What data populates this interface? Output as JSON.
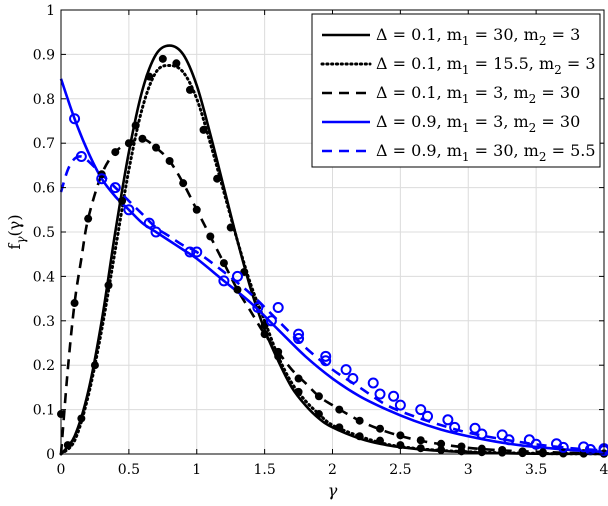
{
  "chart_data": {
    "type": "line",
    "title": "",
    "xlabel": "γ",
    "ylabel": "f_γ(γ)",
    "ylabel_main": "f",
    "ylabel_sub": "γ",
    "ylabel_arg": "(γ)",
    "xlim": [
      0,
      4
    ],
    "ylim": [
      0,
      1
    ],
    "xticks": [
      0,
      0.5,
      1,
      1.5,
      2,
      2.5,
      3,
      3.5,
      4
    ],
    "xtick_labels": [
      "0",
      "0.5",
      "1",
      "1.5",
      "2",
      "2.5",
      "3",
      "3.5",
      "4"
    ],
    "yticks": [
      0,
      0.1,
      0.2,
      0.3,
      0.4,
      0.5,
      0.6,
      0.7,
      0.8,
      0.9,
      1
    ],
    "ytick_labels": [
      "0",
      "0.1",
      "0.2",
      "0.3",
      "0.4",
      "0.5",
      "0.6",
      "0.7",
      "0.8",
      "0.9",
      "1"
    ],
    "grid": true,
    "legend_position": "top-right",
    "series": [
      {
        "name": "Δ = 0.1, m₁ = 30, m₂ = 3",
        "legend_parts": [
          "Δ = 0.1, m",
          "1",
          " = 30, m",
          "2",
          " = 3"
        ],
        "color": "#000000",
        "line_style": "solid",
        "x": [
          0,
          0.1,
          0.2,
          0.3,
          0.4,
          0.5,
          0.6,
          0.7,
          0.8,
          0.9,
          1.0,
          1.1,
          1.2,
          1.3,
          1.4,
          1.5,
          1.6,
          1.7,
          1.8,
          1.9,
          2.0,
          2.2,
          2.4,
          2.6,
          2.8,
          3.0,
          3.2,
          3.4,
          3.6,
          3.8,
          4.0
        ],
        "y": [
          0,
          0.04,
          0.14,
          0.3,
          0.5,
          0.68,
          0.82,
          0.9,
          0.92,
          0.9,
          0.83,
          0.72,
          0.6,
          0.48,
          0.37,
          0.28,
          0.21,
          0.15,
          0.11,
          0.08,
          0.06,
          0.035,
          0.02,
          0.012,
          0.007,
          0.004,
          0.002,
          0.001,
          0.0005,
          0.0003,
          0.0002
        ]
      },
      {
        "name": "Δ = 0.1, m₁ = 15.5, m₂ = 3",
        "legend_parts": [
          "Δ = 0.1, m",
          "1",
          " = 15.5, m",
          "2",
          " = 3"
        ],
        "color": "#000000",
        "line_style": "dotted",
        "x": [
          0,
          0.1,
          0.2,
          0.3,
          0.4,
          0.5,
          0.6,
          0.7,
          0.8,
          0.9,
          1.0,
          1.1,
          1.2,
          1.3,
          1.4,
          1.5,
          1.6,
          1.7,
          1.8,
          1.9,
          2.0,
          2.2,
          2.4,
          2.6,
          2.8,
          3.0,
          3.2,
          3.4,
          3.6,
          3.8,
          4.0
        ],
        "y": [
          0,
          0.03,
          0.13,
          0.28,
          0.46,
          0.64,
          0.78,
          0.86,
          0.875,
          0.86,
          0.8,
          0.7,
          0.59,
          0.48,
          0.38,
          0.3,
          0.22,
          0.16,
          0.12,
          0.09,
          0.065,
          0.04,
          0.022,
          0.013,
          0.008,
          0.005,
          0.003,
          0.002,
          0.001,
          0.0006,
          0.0004
        ]
      },
      {
        "name": "Δ = 0.1, m₁ = 3, m₂ = 30",
        "legend_parts": [
          "Δ = 0.1, m",
          "1",
          " = 3, m",
          "2",
          " = 30"
        ],
        "color": "#000000",
        "line_style": "dashed",
        "x": [
          0,
          0.05,
          0.1,
          0.15,
          0.2,
          0.3,
          0.4,
          0.5,
          0.6,
          0.7,
          0.8,
          0.9,
          1.0,
          1.1,
          1.2,
          1.3,
          1.4,
          1.5,
          1.6,
          1.7,
          1.8,
          1.9,
          2.0,
          2.2,
          2.4,
          2.6,
          2.8,
          3.0,
          3.2,
          3.4,
          3.6,
          3.8,
          4.0
        ],
        "y": [
          0,
          0.19,
          0.34,
          0.44,
          0.53,
          0.63,
          0.68,
          0.7,
          0.71,
          0.69,
          0.66,
          0.61,
          0.55,
          0.49,
          0.43,
          0.37,
          0.32,
          0.27,
          0.23,
          0.19,
          0.16,
          0.13,
          0.11,
          0.075,
          0.05,
          0.033,
          0.022,
          0.014,
          0.009,
          0.006,
          0.004,
          0.002,
          0.0015
        ]
      },
      {
        "name": "Δ = 0.9, m₁ = 3, m₂ = 30",
        "legend_parts": [
          "Δ = 0.9, m",
          "1",
          " = 3, m",
          "2",
          " = 30"
        ],
        "color": "#0000FF",
        "line_style": "solid",
        "x": [
          0,
          0.1,
          0.2,
          0.3,
          0.4,
          0.5,
          0.6,
          0.7,
          0.8,
          0.9,
          1.0,
          1.2,
          1.4,
          1.6,
          1.8,
          2.0,
          2.2,
          2.4,
          2.6,
          2.8,
          3.0,
          3.2,
          3.4,
          3.6,
          3.8,
          4.0
        ],
        "y": [
          0.845,
          0.755,
          0.68,
          0.62,
          0.58,
          0.55,
          0.52,
          0.5,
          0.48,
          0.46,
          0.44,
          0.39,
          0.34,
          0.28,
          0.22,
          0.17,
          0.13,
          0.1,
          0.075,
          0.055,
          0.04,
          0.028,
          0.019,
          0.013,
          0.008,
          0.005
        ]
      },
      {
        "name": "Δ = 0.9, m₁ = 30, m₂ = 5.5",
        "legend_parts": [
          "Δ = 0.9, m",
          "1",
          " = 30, m",
          "2",
          " = 5.5"
        ],
        "color": "#0000FF",
        "line_style": "dashed",
        "x": [
          0,
          0.05,
          0.1,
          0.15,
          0.2,
          0.3,
          0.4,
          0.5,
          0.6,
          0.7,
          0.8,
          0.9,
          1.0,
          1.2,
          1.4,
          1.6,
          1.8,
          2.0,
          2.2,
          2.4,
          2.6,
          2.8,
          3.0,
          3.2,
          3.4,
          3.6,
          3.8,
          4.0
        ],
        "y": [
          0.59,
          0.64,
          0.665,
          0.67,
          0.66,
          0.63,
          0.6,
          0.57,
          0.54,
          0.51,
          0.49,
          0.47,
          0.455,
          0.41,
          0.36,
          0.3,
          0.24,
          0.19,
          0.15,
          0.11,
          0.085,
          0.065,
          0.048,
          0.036,
          0.026,
          0.018,
          0.012,
          0.008
        ]
      }
    ],
    "simulation_markers": [
      {
        "marker": "filled-circle",
        "color": "#000000",
        "x": [
          0.05,
          0.15,
          0.25,
          0.35,
          0.45,
          0.55,
          0.65,
          0.75,
          0.85,
          0.95,
          1.05,
          1.15,
          1.25,
          1.35,
          1.5,
          1.6,
          1.75,
          1.9,
          2.05,
          2.2,
          2.35,
          2.5,
          2.65,
          2.8,
          2.95,
          3.1,
          3.25,
          3.4,
          3.55,
          3.7,
          3.85,
          4.0
        ],
        "y": [
          0.02,
          0.08,
          0.2,
          0.38,
          0.57,
          0.74,
          0.85,
          0.89,
          0.88,
          0.82,
          0.73,
          0.62,
          0.51,
          0.41,
          0.29,
          0.22,
          0.14,
          0.09,
          0.06,
          0.04,
          0.03,
          0.02,
          0.013,
          0.009,
          0.006,
          0.004,
          0.003,
          0.002,
          0.0015,
          0.001,
          0.0008,
          0.0005
        ]
      },
      {
        "marker": "filled-circle",
        "color": "#000000",
        "x": [
          0,
          0.1,
          0.2,
          0.3,
          0.4,
          0.5,
          0.6,
          0.7,
          0.8,
          0.9,
          1.0,
          1.1,
          1.2,
          1.3,
          1.5,
          1.6,
          1.75,
          1.9,
          2.05,
          2.2,
          2.35,
          2.5,
          2.65,
          2.8,
          2.95,
          3.1,
          3.25,
          3.4,
          3.55,
          3.7,
          3.85,
          4.0
        ],
        "y": [
          0.09,
          0.34,
          0.53,
          0.63,
          0.68,
          0.7,
          0.71,
          0.69,
          0.66,
          0.61,
          0.55,
          0.49,
          0.43,
          0.37,
          0.27,
          0.23,
          0.17,
          0.13,
          0.1,
          0.075,
          0.057,
          0.042,
          0.031,
          0.023,
          0.017,
          0.012,
          0.009,
          0.006,
          0.004,
          0.003,
          0.002,
          0.0015
        ]
      },
      {
        "marker": "open-circle",
        "color": "#0000FF",
        "x": [
          0.1,
          0.3,
          0.5,
          0.7,
          0.95,
          1.2,
          1.45,
          1.55,
          1.75,
          1.95,
          2.15,
          2.35,
          2.5,
          2.7,
          2.9,
          3.1,
          3.3,
          3.5,
          3.7,
          3.9,
          4.0
        ],
        "y": [
          0.755,
          0.62,
          0.55,
          0.5,
          0.455,
          0.39,
          0.33,
          0.3,
          0.26,
          0.21,
          0.17,
          0.135,
          0.11,
          0.085,
          0.06,
          0.045,
          0.032,
          0.022,
          0.015,
          0.01,
          0.008
        ]
      },
      {
        "marker": "open-circle",
        "color": "#0000FF",
        "x": [
          0.15,
          0.4,
          0.65,
          1.0,
          1.3,
          1.6,
          1.75,
          1.95,
          2.1,
          2.3,
          2.45,
          2.65,
          2.85,
          3.05,
          3.25,
          3.45,
          3.65,
          3.85,
          4.0
        ],
        "y": [
          0.67,
          0.6,
          0.52,
          0.455,
          0.4,
          0.33,
          0.27,
          0.22,
          0.19,
          0.16,
          0.13,
          0.1,
          0.077,
          0.058,
          0.043,
          0.032,
          0.023,
          0.016,
          0.012
        ]
      }
    ]
  }
}
